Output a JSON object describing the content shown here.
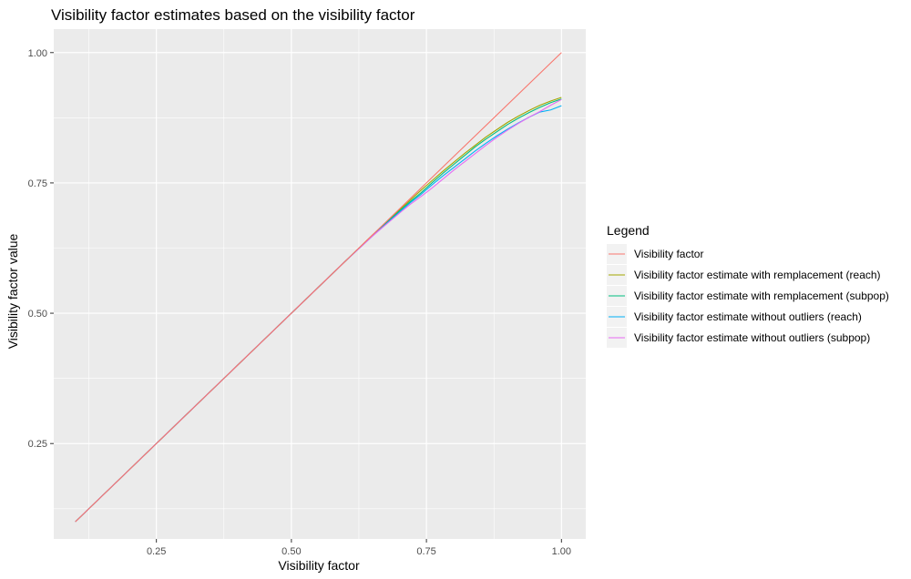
{
  "chart_data": {
    "type": "line",
    "title": "Visibility factor estimates based on the visibility factor",
    "xlabel": "Visibility factor",
    "ylabel": "Visibility factor value",
    "xlim": [
      0.06,
      1.045
    ],
    "ylim": [
      0.067,
      1.045
    ],
    "x_ticks": [
      0.25,
      0.5,
      0.75,
      1.0
    ],
    "x_tick_labels": [
      "0.25",
      "0.50",
      "0.75",
      "1.00"
    ],
    "y_ticks": [
      0.25,
      0.5,
      0.75,
      1.0
    ],
    "y_tick_labels": [
      "0.25",
      "0.50",
      "0.75",
      "1.00"
    ],
    "grid": true,
    "legend_title": "Legend",
    "legend_position": "right",
    "series": [
      {
        "name": "Visibility factor",
        "color": "#F8766D",
        "x": [
          0.1,
          1.0
        ],
        "y": [
          0.1,
          1.0
        ]
      },
      {
        "name": "Visibility factor estimate with remplacement (reach)",
        "color": "#A3A500",
        "x": [
          0.1,
          0.2,
          0.3,
          0.4,
          0.5,
          0.6,
          0.65,
          0.7,
          0.72,
          0.74,
          0.76,
          0.78,
          0.8,
          0.82,
          0.84,
          0.86,
          0.88,
          0.9,
          0.92,
          0.94,
          0.96,
          0.98,
          1.0
        ],
        "y": [
          0.1,
          0.2,
          0.3,
          0.4,
          0.5,
          0.6,
          0.65,
          0.698,
          0.717,
          0.736,
          0.754,
          0.772,
          0.789,
          0.806,
          0.822,
          0.838,
          0.852,
          0.866,
          0.878,
          0.889,
          0.899,
          0.907,
          0.914
        ]
      },
      {
        "name": "Visibility factor estimate with remplacement (subpop)",
        "color": "#00BF7D",
        "x": [
          0.1,
          0.2,
          0.3,
          0.4,
          0.5,
          0.6,
          0.65,
          0.7,
          0.72,
          0.74,
          0.76,
          0.78,
          0.8,
          0.82,
          0.84,
          0.86,
          0.88,
          0.9,
          0.92,
          0.94,
          0.96,
          0.98,
          1.0
        ],
        "y": [
          0.1,
          0.2,
          0.3,
          0.4,
          0.5,
          0.6,
          0.649,
          0.696,
          0.714,
          0.731,
          0.75,
          0.768,
          0.785,
          0.802,
          0.819,
          0.834,
          0.848,
          0.862,
          0.874,
          0.885,
          0.895,
          0.904,
          0.911
        ]
      },
      {
        "name": "Visibility factor estimate without outliers (reach)",
        "color": "#00B0F6",
        "x": [
          0.1,
          0.2,
          0.3,
          0.4,
          0.5,
          0.6,
          0.65,
          0.7,
          0.72,
          0.74,
          0.76,
          0.78,
          0.8,
          0.82,
          0.84,
          0.86,
          0.88,
          0.9,
          0.92,
          0.94,
          0.96,
          0.98,
          1.0
        ],
        "y": [
          0.1,
          0.2,
          0.3,
          0.4,
          0.5,
          0.6,
          0.648,
          0.694,
          0.712,
          0.728,
          0.746,
          0.763,
          0.779,
          0.795,
          0.811,
          0.826,
          0.84,
          0.853,
          0.865,
          0.876,
          0.886,
          0.89,
          0.898
        ]
      },
      {
        "name": "Visibility factor estimate without outliers (subpop)",
        "color": "#E76BF3",
        "x": [
          0.1,
          0.2,
          0.3,
          0.4,
          0.5,
          0.6,
          0.65,
          0.7,
          0.72,
          0.74,
          0.76,
          0.78,
          0.8,
          0.82,
          0.84,
          0.86,
          0.88,
          0.9,
          0.92,
          0.94,
          0.96,
          0.98,
          1.0
        ],
        "y": [
          0.1,
          0.2,
          0.3,
          0.4,
          0.5,
          0.6,
          0.648,
          0.692,
          0.709,
          0.724,
          0.74,
          0.757,
          0.774,
          0.79,
          0.806,
          0.822,
          0.837,
          0.851,
          0.864,
          0.876,
          0.887,
          0.899,
          0.91
        ]
      }
    ]
  }
}
